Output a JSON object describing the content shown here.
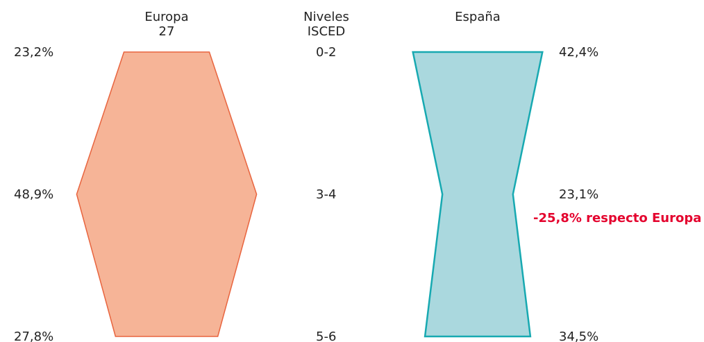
{
  "chart_data": {
    "type": "shape",
    "category_title": "Niveles ISCED",
    "categories": [
      "0-2",
      "3-4",
      "5-6"
    ],
    "series": [
      {
        "name": "Europa 27",
        "color": "#f6b497",
        "edge_color": "#e8643e",
        "values": [
          23.2,
          48.9,
          27.8
        ],
        "value_labels": [
          "23,2%",
          "48,9%",
          "27,8%"
        ]
      },
      {
        "name": "España",
        "color": "#aad8de",
        "edge_color": "#17a9b1",
        "values": [
          42.4,
          23.1,
          34.5
        ],
        "value_labels": [
          "42,4%",
          "23,1%",
          "34,5%"
        ]
      }
    ],
    "annotation": {
      "text": "-25,8% respecto Europa",
      "color": "#e4032e"
    }
  }
}
